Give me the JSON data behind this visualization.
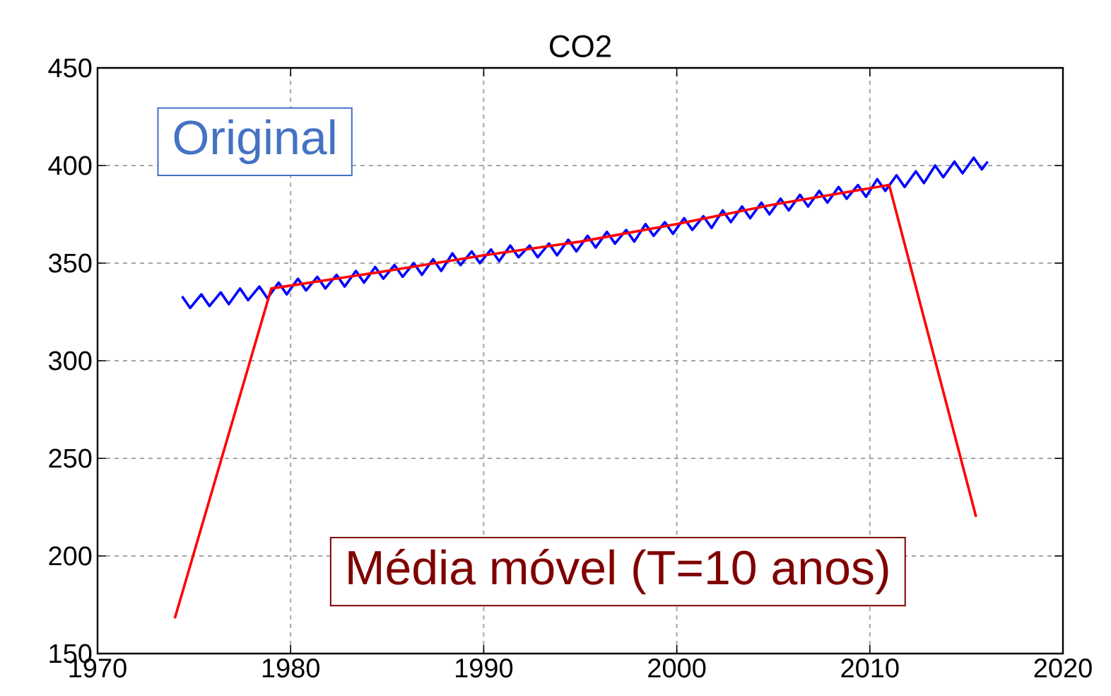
{
  "chart_data": {
    "type": "line",
    "title": "CO2",
    "xlim": [
      1970,
      2020
    ],
    "xticks": [
      1970,
      1980,
      1990,
      2000,
      2010,
      2020
    ],
    "ylim": [
      150,
      450
    ],
    "yticks": [
      150,
      200,
      250,
      300,
      350,
      400,
      450
    ],
    "grid": true,
    "line_style": "solid",
    "annotations": [
      "Original",
      "Média móvel (T=10 anos)"
    ],
    "series": [
      {
        "color": "#0000ff",
        "x": [
          1974.38,
          1974.8,
          1975.38,
          1975.8,
          1976.38,
          1976.8,
          1977.38,
          1977.8,
          1978.38,
          1978.8,
          1979.38,
          1979.8,
          1980.38,
          1980.8,
          1981.38,
          1981.8,
          1982.38,
          1982.8,
          1983.38,
          1983.8,
          1984.38,
          1984.8,
          1985.38,
          1985.8,
          1986.38,
          1986.8,
          1987.38,
          1987.8,
          1988.38,
          1988.8,
          1989.38,
          1989.8,
          1990.38,
          1990.8,
          1991.38,
          1991.8,
          1992.38,
          1992.8,
          1993.38,
          1993.8,
          1994.38,
          1994.8,
          1995.38,
          1995.8,
          1996.38,
          1996.8,
          1997.38,
          1997.8,
          1998.38,
          1998.8,
          1999.38,
          1999.8,
          2000.38,
          2000.8,
          2001.38,
          2001.8,
          2002.38,
          2002.8,
          2003.38,
          2003.8,
          2004.38,
          2004.8,
          2005.38,
          2005.8,
          2006.38,
          2006.8,
          2007.38,
          2007.8,
          2008.38,
          2008.8,
          2009.38,
          2009.8,
          2010.38,
          2010.8,
          2011.38,
          2011.8,
          2012.38,
          2012.8,
          2013.38,
          2013.8,
          2014.38,
          2014.8,
          2015.38,
          2015.8,
          2016.1
        ],
        "values": [
          333,
          327,
          334,
          328,
          335,
          329,
          337,
          331,
          338,
          332,
          340,
          334,
          342,
          336,
          343,
          337,
          344,
          338,
          346,
          340,
          348,
          342,
          349,
          343,
          350,
          344,
          352,
          346,
          355,
          349,
          356,
          350,
          357,
          351,
          359,
          353,
          359,
          353,
          360,
          354,
          362,
          356,
          364,
          358,
          366,
          360,
          367,
          361,
          370,
          364,
          371,
          365,
          373,
          367,
          374,
          368,
          377,
          371,
          379,
          373,
          381,
          375,
          383,
          377,
          385,
          379,
          387,
          381,
          389,
          383,
          390,
          384,
          393,
          387,
          395,
          389,
          397,
          391,
          400,
          394,
          402,
          396,
          404,
          398,
          402
        ]
      },
      {
        "color": "#ff0000",
        "x": [
          1974,
          1979,
          1985,
          1990,
          1995,
          2000,
          2005,
          2011,
          2015.5
        ],
        "values": [
          168,
          337,
          346,
          354,
          361,
          370,
          380,
          390,
          220
        ]
      }
    ]
  }
}
